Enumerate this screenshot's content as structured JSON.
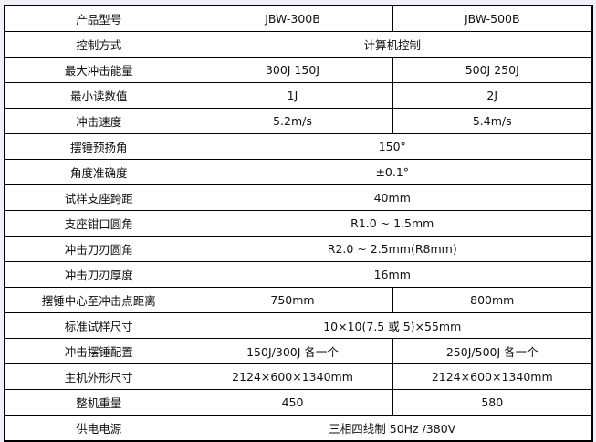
{
  "table": {
    "rows": [
      {
        "label": "产品型号",
        "values": [
          "JBW-300B",
          "JBW-500B"
        ]
      },
      {
        "label": "控制方式",
        "values": [
          "计算机控制"
        ]
      },
      {
        "label": "最大冲击能量",
        "values": [
          "300J 150J",
          "500J 250J"
        ]
      },
      {
        "label": "最小读数值",
        "values": [
          "1J",
          "2J"
        ]
      },
      {
        "label": "冲击速度",
        "values": [
          "5.2m/s",
          "5.4m/s"
        ]
      },
      {
        "label": "摆锤预扬角",
        "values": [
          "150°"
        ]
      },
      {
        "label": "角度准确度",
        "values": [
          "±0.1°"
        ]
      },
      {
        "label": "试样支座跨距",
        "values": [
          "40mm"
        ]
      },
      {
        "label": "支座钳口圆角",
        "values": [
          "R1.0 ~ 1.5mm"
        ]
      },
      {
        "label": "冲击刀刃圆角",
        "values": [
          "R2.0 ~ 2.5mm(R8mm)"
        ]
      },
      {
        "label": "冲击刀刃厚度",
        "values": [
          "16mm"
        ]
      },
      {
        "label": "摆锤中心至冲击点距离",
        "values": [
          "750mm",
          "800mm"
        ]
      },
      {
        "label": "标准试样尺寸",
        "values": [
          "10×10(7.5 或 5)×55mm"
        ]
      },
      {
        "label": "冲击摆锤配置",
        "values": [
          "150J/300J 各一个",
          "250J/500J 各一个"
        ]
      },
      {
        "label": "主机外形尺寸",
        "values": [
          "2124×600×1340mm",
          "2124×600×1340mm"
        ]
      },
      {
        "label": "整机重量",
        "values": [
          "450",
          "580"
        ]
      },
      {
        "label": "供电电源",
        "values": [
          "三相四线制 50Hz /380V"
        ]
      }
    ]
  }
}
